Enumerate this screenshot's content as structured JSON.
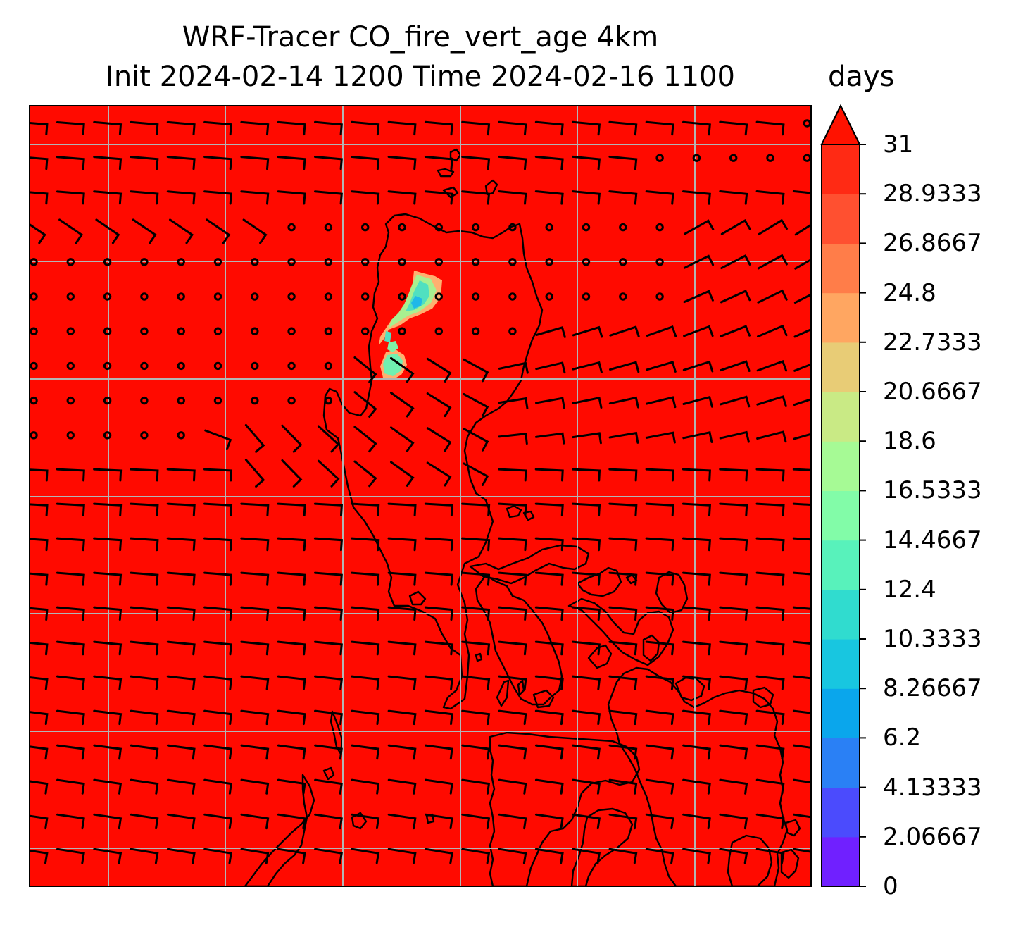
{
  "title": {
    "line1": "WRF-Tracer CO_fire_vert_age 4km",
    "line2": "Init 2024-02-14 1200 Time 2024-02-16 1100"
  },
  "colorbar": {
    "units": "days",
    "tick_labels": [
      "0",
      "2.06667",
      "4.13333",
      "6.2",
      "8.26667",
      "10.3333",
      "12.4",
      "14.4667",
      "16.5333",
      "18.6",
      "20.6667",
      "22.7333",
      "24.8",
      "26.8667",
      "28.9333",
      "31"
    ],
    "levels_colors": [
      "#7020ff",
      "#4b4bfd",
      "#2a80f5",
      "#0aa6ec",
      "#18c6e0",
      "#30dccf",
      "#58f2bb",
      "#82fca8",
      "#a6fa95",
      "#c9ea85",
      "#e8cc76",
      "#ffa661",
      "#ff7d49",
      "#ff5030",
      "#ff2a14"
    ],
    "extend_color": "#ff1200",
    "range": [
      0,
      31
    ]
  },
  "map": {
    "background_color": "#ff0a00",
    "features": [
      "coastlines",
      "gridlines",
      "wind-barbs",
      "calm-wind-circles",
      "tracer-plume"
    ]
  }
}
